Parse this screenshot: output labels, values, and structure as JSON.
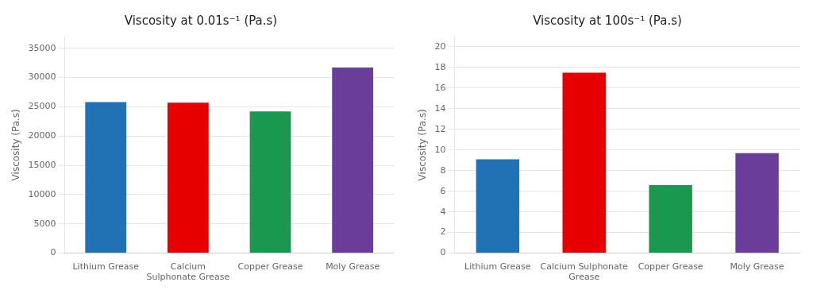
{
  "chart_data": [
    {
      "type": "bar",
      "title": "Viscosity at 0.01s⁻¹ (Pa.s)",
      "categories": [
        "Lithium Grease",
        "Calcium\nSulphonate Grease",
        "Copper Grease",
        "Moly Grease"
      ],
      "values": [
        25800,
        25700,
        24200,
        31700
      ],
      "colors": [
        "#2171b5",
        "#e60000",
        "#1a9850",
        "#6a3d9a"
      ],
      "ylabel": "Viscosity (Pa.s)",
      "ylim": [
        0,
        37000
      ],
      "yticks": [
        0,
        5000,
        10000,
        15000,
        20000,
        25000,
        30000,
        35000
      ],
      "grid": true
    },
    {
      "type": "bar",
      "title": "Viscosity at 100s⁻¹ (Pa.s)",
      "categories": [
        "Lithium Grease",
        "Calcium Sulphonate\nGrease",
        "Copper Grease",
        "Moly Grease"
      ],
      "values": [
        9.1,
        17.5,
        6.6,
        9.7
      ],
      "colors": [
        "#2171b5",
        "#e60000",
        "#1a9850",
        "#6a3d9a"
      ],
      "ylabel": "Viscosity (Pa.s)",
      "ylim": [
        0,
        21
      ],
      "yticks": [
        0,
        2,
        4,
        6,
        8,
        10,
        12,
        14,
        16,
        18,
        20
      ],
      "grid": true
    }
  ]
}
